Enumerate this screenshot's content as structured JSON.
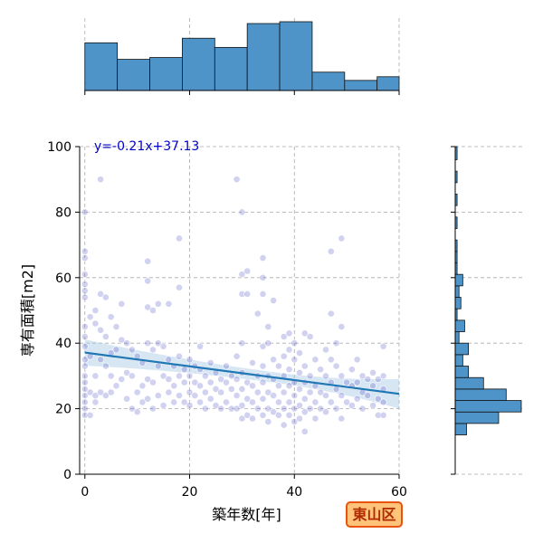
{
  "chart_data": {
    "type": "scatter",
    "title": "",
    "xlabel": "築年数[年]",
    "ylabel": "専有面積[m2]",
    "xlim": [
      -1,
      60
    ],
    "ylim": [
      0,
      100
    ],
    "xticks": [
      0,
      20,
      40,
      60
    ],
    "yticks": [
      0,
      20,
      40,
      60,
      80,
      100
    ],
    "grid": true,
    "point_color": "#5a5ac8",
    "line_color": "#1f77b4",
    "hist_color": "#4f94c9",
    "regression": {
      "slope": -0.21,
      "intercept": 37.13,
      "label": "y=-0.21x+37.13"
    },
    "badge": {
      "text": "東山区",
      "fill": "#ffc47a",
      "border": "#e8540f"
    },
    "top_histogram": {
      "bin_edges": [
        0,
        6.2,
        12.4,
        18.6,
        24.8,
        31,
        37.2,
        43.4,
        49.6,
        55.8,
        60
      ],
      "counts": [
        52,
        34,
        36,
        57,
        47,
        73,
        75,
        20,
        11,
        15
      ]
    },
    "right_histogram": {
      "bin_edges": [
        12,
        15.5,
        19,
        22.5,
        26,
        29.5,
        33,
        36.5,
        40,
        43.5,
        47,
        50.5,
        54,
        57.5,
        61,
        64.5,
        68,
        71.5,
        75,
        78.5,
        82,
        85.5,
        89,
        92.5,
        96,
        100
      ],
      "counts": [
        6,
        23,
        35,
        27,
        15,
        7,
        4,
        7,
        2,
        5,
        1,
        3,
        2,
        4,
        1,
        1,
        1,
        0,
        1,
        0,
        1,
        0,
        1,
        0,
        1
      ]
    },
    "points": [
      [
        0,
        80
      ],
      [
        0,
        68
      ],
      [
        0,
        66
      ],
      [
        0,
        61
      ],
      [
        0,
        58
      ],
      [
        0,
        56
      ],
      [
        0,
        54
      ],
      [
        0,
        45
      ],
      [
        0,
        42
      ],
      [
        0,
        39
      ],
      [
        0,
        35
      ],
      [
        0,
        33
      ],
      [
        0,
        30
      ],
      [
        0,
        28
      ],
      [
        0,
        26
      ],
      [
        0,
        24
      ],
      [
        0,
        22
      ],
      [
        0,
        20
      ],
      [
        0,
        18
      ],
      [
        1,
        48
      ],
      [
        1,
        36
      ],
      [
        1,
        25
      ],
      [
        1,
        18
      ],
      [
        2,
        50
      ],
      [
        2,
        46
      ],
      [
        2,
        30
      ],
      [
        2,
        24
      ],
      [
        2,
        22
      ],
      [
        3,
        90
      ],
      [
        3,
        55
      ],
      [
        3,
        44
      ],
      [
        3,
        35
      ],
      [
        3,
        25
      ],
      [
        4,
        54
      ],
      [
        4,
        42
      ],
      [
        4,
        33
      ],
      [
        4,
        24
      ],
      [
        5,
        48
      ],
      [
        5,
        37
      ],
      [
        5,
        30
      ],
      [
        5,
        25
      ],
      [
        6,
        45
      ],
      [
        6,
        38
      ],
      [
        6,
        27
      ],
      [
        7,
        52
      ],
      [
        7,
        41
      ],
      [
        7,
        29
      ],
      [
        8,
        40
      ],
      [
        8,
        31
      ],
      [
        8,
        23
      ],
      [
        9,
        38
      ],
      [
        9,
        30
      ],
      [
        9,
        20
      ],
      [
        10,
        36
      ],
      [
        10,
        25
      ],
      [
        10,
        19
      ],
      [
        11,
        34
      ],
      [
        11,
        27
      ],
      [
        11,
        22
      ],
      [
        12,
        65
      ],
      [
        12,
        59
      ],
      [
        12,
        51
      ],
      [
        12,
        40
      ],
      [
        12,
        29
      ],
      [
        12,
        23
      ],
      [
        13,
        50
      ],
      [
        13,
        38
      ],
      [
        13,
        28
      ],
      [
        13,
        20
      ],
      [
        14,
        52
      ],
      [
        14,
        40
      ],
      [
        14,
        33
      ],
      [
        14,
        24
      ],
      [
        15,
        39
      ],
      [
        15,
        30
      ],
      [
        15,
        21
      ],
      [
        16,
        52
      ],
      [
        16,
        35
      ],
      [
        16,
        29
      ],
      [
        16,
        25
      ],
      [
        17,
        33
      ],
      [
        17,
        27
      ],
      [
        17,
        22
      ],
      [
        18,
        72
      ],
      [
        18,
        57
      ],
      [
        18,
        36
      ],
      [
        18,
        30
      ],
      [
        18,
        24
      ],
      [
        19,
        32
      ],
      [
        19,
        28
      ],
      [
        19,
        22
      ],
      [
        20,
        35
      ],
      [
        20,
        30
      ],
      [
        20,
        25
      ],
      [
        20,
        21
      ],
      [
        21,
        33
      ],
      [
        21,
        28
      ],
      [
        21,
        24
      ],
      [
        22,
        39
      ],
      [
        22,
        32
      ],
      [
        22,
        27
      ],
      [
        22,
        22
      ],
      [
        23,
        30
      ],
      [
        23,
        25
      ],
      [
        23,
        20
      ],
      [
        24,
        34
      ],
      [
        24,
        28
      ],
      [
        24,
        23
      ],
      [
        25,
        31
      ],
      [
        25,
        26
      ],
      [
        25,
        21
      ],
      [
        26,
        29
      ],
      [
        26,
        25
      ],
      [
        26,
        20
      ],
      [
        27,
        33
      ],
      [
        27,
        28
      ],
      [
        27,
        22
      ],
      [
        28,
        30
      ],
      [
        28,
        26
      ],
      [
        28,
        20
      ],
      [
        29,
        90
      ],
      [
        29,
        36
      ],
      [
        29,
        29
      ],
      [
        29,
        24
      ],
      [
        29,
        20
      ],
      [
        30,
        80
      ],
      [
        30,
        61
      ],
      [
        30,
        55
      ],
      [
        30,
        40
      ],
      [
        30,
        31
      ],
      [
        30,
        26
      ],
      [
        30,
        21
      ],
      [
        30,
        17
      ],
      [
        31,
        62
      ],
      [
        31,
        55
      ],
      [
        31,
        28
      ],
      [
        31,
        23
      ],
      [
        31,
        18
      ],
      [
        32,
        34
      ],
      [
        32,
        27
      ],
      [
        32,
        22
      ],
      [
        32,
        17
      ],
      [
        33,
        49
      ],
      [
        33,
        30
      ],
      [
        33,
        25
      ],
      [
        33,
        20
      ],
      [
        34,
        66
      ],
      [
        34,
        60
      ],
      [
        34,
        55
      ],
      [
        34,
        39
      ],
      [
        34,
        33
      ],
      [
        34,
        28
      ],
      [
        34,
        23
      ],
      [
        34,
        18
      ],
      [
        35,
        45
      ],
      [
        35,
        40
      ],
      [
        35,
        30
      ],
      [
        35,
        25
      ],
      [
        35,
        20
      ],
      [
        35,
        16
      ],
      [
        36,
        53
      ],
      [
        36,
        35
      ],
      [
        36,
        29
      ],
      [
        36,
        24
      ],
      [
        36,
        19
      ],
      [
        37,
        33
      ],
      [
        37,
        27
      ],
      [
        37,
        22
      ],
      [
        37,
        18
      ],
      [
        38,
        42
      ],
      [
        38,
        36
      ],
      [
        38,
        30
      ],
      [
        38,
        25
      ],
      [
        38,
        20
      ],
      [
        38,
        15
      ],
      [
        39,
        43
      ],
      [
        39,
        38
      ],
      [
        39,
        32
      ],
      [
        39,
        27
      ],
      [
        39,
        22
      ],
      [
        39,
        18
      ],
      [
        40,
        40
      ],
      [
        40,
        35
      ],
      [
        40,
        28
      ],
      [
        40,
        24
      ],
      [
        40,
        20
      ],
      [
        40,
        16
      ],
      [
        41,
        37
      ],
      [
        41,
        31
      ],
      [
        41,
        26
      ],
      [
        41,
        21
      ],
      [
        41,
        17
      ],
      [
        42,
        43
      ],
      [
        42,
        33
      ],
      [
        42,
        28
      ],
      [
        42,
        23
      ],
      [
        42,
        19
      ],
      [
        42,
        13
      ],
      [
        43,
        42
      ],
      [
        43,
        30
      ],
      [
        43,
        25
      ],
      [
        43,
        20
      ],
      [
        44,
        35
      ],
      [
        44,
        27
      ],
      [
        44,
        22
      ],
      [
        44,
        17
      ],
      [
        45,
        32
      ],
      [
        45,
        25
      ],
      [
        45,
        20
      ],
      [
        46,
        38
      ],
      [
        46,
        30
      ],
      [
        46,
        24
      ],
      [
        46,
        19
      ],
      [
        47,
        68
      ],
      [
        47,
        49
      ],
      [
        47,
        35
      ],
      [
        47,
        28
      ],
      [
        47,
        22
      ],
      [
        48,
        40
      ],
      [
        48,
        33
      ],
      [
        48,
        26
      ],
      [
        48,
        20
      ],
      [
        49,
        72
      ],
      [
        49,
        45
      ],
      [
        49,
        30
      ],
      [
        49,
        24
      ],
      [
        49,
        17
      ],
      [
        50,
        28
      ],
      [
        50,
        22
      ],
      [
        51,
        32
      ],
      [
        51,
        27
      ],
      [
        51,
        21
      ],
      [
        52,
        35
      ],
      [
        52,
        28
      ],
      [
        52,
        23
      ],
      [
        53,
        30
      ],
      [
        53,
        25
      ],
      [
        53,
        20
      ],
      [
        54,
        29
      ],
      [
        54,
        24
      ],
      [
        55,
        31
      ],
      [
        55,
        27
      ],
      [
        55,
        21
      ],
      [
        56,
        29
      ],
      [
        56,
        23
      ],
      [
        56,
        18
      ],
      [
        57,
        39
      ],
      [
        57,
        30
      ],
      [
        57,
        26
      ],
      [
        57,
        22
      ],
      [
        57,
        18
      ]
    ]
  }
}
